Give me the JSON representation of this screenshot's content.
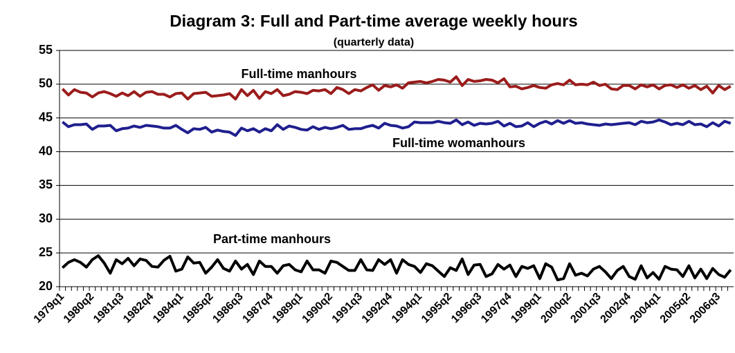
{
  "chart_data": {
    "type": "line",
    "title": "Diagram 3: Full and Part-time average weekly hours",
    "subtitle": "(quarterly data)",
    "categories": [
      "1979q1",
      null,
      null,
      null,
      null,
      "1980q2",
      null,
      null,
      null,
      null,
      "1981q3",
      null,
      null,
      null,
      null,
      "1982q4",
      null,
      null,
      null,
      null,
      "1984q1",
      null,
      null,
      null,
      null,
      "1985q2",
      null,
      null,
      null,
      null,
      "1986q3",
      null,
      null,
      null,
      null,
      "1987q4",
      null,
      null,
      null,
      null,
      "1989q1",
      null,
      null,
      null,
      null,
      "1990q2",
      null,
      null,
      null,
      null,
      "1991q3",
      null,
      null,
      null,
      null,
      "1992q4",
      null,
      null,
      null,
      null,
      "1994q1",
      null,
      null,
      null,
      null,
      "1995q2",
      null,
      null,
      null,
      null,
      "1996q3",
      null,
      null,
      null,
      null,
      "1997q4",
      null,
      null,
      null,
      null,
      "1999q1",
      null,
      null,
      null,
      null,
      "2000q2",
      null,
      null,
      null,
      null,
      "2001q3",
      null,
      null,
      null,
      null,
      "2002q4",
      null,
      null,
      null,
      null,
      "2004q1",
      null,
      null,
      null,
      null,
      "2005q2",
      null,
      null,
      null,
      null,
      "2006q3",
      null,
      null
    ],
    "series": [
      {
        "name": "Full-time manhours",
        "color": "#9b1c1c",
        "values": [
          49.3,
          48.4,
          49.2,
          48.8,
          48.7,
          48.1,
          48.7,
          48.9,
          48.6,
          48.2,
          48.7,
          48.3,
          48.9,
          48.2,
          48.8,
          48.9,
          48.5,
          48.5,
          48.1,
          48.6,
          48.7,
          47.8,
          48.6,
          48.7,
          48.8,
          48.2,
          48.3,
          48.4,
          48.6,
          47.8,
          49.2,
          48.3,
          49.1,
          47.9,
          48.9,
          48.6,
          49.2,
          48.3,
          48.5,
          48.9,
          48.8,
          48.6,
          49.1,
          49.0,
          49.2,
          48.6,
          49.5,
          49.2,
          48.6,
          49.2,
          49.0,
          49.5,
          49.9,
          49.1,
          49.8,
          49.6,
          49.9,
          49.4,
          50.2,
          50.3,
          50.4,
          50.2,
          50.4,
          50.7,
          50.6,
          50.3,
          51.1,
          49.8,
          50.7,
          50.4,
          50.5,
          50.7,
          50.6,
          50.2,
          50.8,
          49.6,
          49.7,
          49.3,
          49.5,
          49.8,
          49.5,
          49.4,
          49.9,
          50.1,
          49.9,
          50.6,
          49.9,
          50.0,
          49.9,
          50.3,
          49.8,
          50.0,
          49.3,
          49.2,
          49.8,
          49.8,
          49.3,
          49.9,
          49.6,
          49.9,
          49.3,
          49.8,
          49.9,
          49.5,
          49.9,
          49.4,
          49.8,
          49.2,
          49.7,
          48.7,
          49.8,
          49.2,
          49.7
        ]
      },
      {
        "name": "Full-time womanhours",
        "color": "#1f1f8f",
        "values": [
          44.4,
          43.7,
          44.0,
          44.0,
          44.1,
          43.3,
          43.8,
          43.8,
          43.9,
          43.1,
          43.4,
          43.5,
          43.8,
          43.6,
          43.9,
          43.8,
          43.7,
          43.5,
          43.5,
          43.9,
          43.3,
          42.8,
          43.4,
          43.3,
          43.6,
          42.9,
          43.2,
          43.0,
          42.9,
          42.4,
          43.5,
          43.1,
          43.4,
          42.9,
          43.4,
          43.1,
          44.0,
          43.3,
          43.8,
          43.6,
          43.3,
          43.2,
          43.7,
          43.3,
          43.6,
          43.4,
          43.6,
          43.9,
          43.3,
          43.4,
          43.4,
          43.7,
          43.9,
          43.5,
          44.2,
          43.9,
          43.8,
          43.5,
          43.7,
          44.4,
          44.3,
          44.3,
          44.3,
          44.5,
          44.3,
          44.2,
          44.7,
          44.0,
          44.4,
          43.9,
          44.2,
          44.1,
          44.2,
          44.5,
          43.8,
          44.2,
          43.7,
          43.8,
          44.3,
          43.7,
          44.2,
          44.5,
          44.1,
          44.6,
          44.2,
          44.6,
          44.2,
          44.3,
          44.1,
          44.0,
          43.9,
          44.1,
          44.0,
          44.1,
          44.2,
          44.3,
          44.0,
          44.5,
          44.3,
          44.4,
          44.7,
          44.4,
          44.0,
          44.2,
          44.0,
          44.5,
          44.0,
          44.1,
          43.7,
          44.3,
          43.8,
          44.5,
          44.2
        ]
      },
      {
        "name": "Part-time manhours",
        "color": "#000000",
        "values": [
          22.8,
          23.6,
          24.0,
          23.6,
          22.9,
          24.0,
          24.6,
          23.5,
          22.0,
          24.0,
          23.4,
          24.2,
          23.1,
          24.1,
          23.9,
          23.0,
          22.9,
          23.9,
          24.5,
          22.3,
          22.6,
          24.4,
          23.5,
          23.6,
          22.0,
          22.9,
          24.0,
          22.7,
          22.3,
          23.8,
          22.6,
          23.3,
          21.8,
          23.8,
          23.0,
          23.0,
          22.0,
          23.1,
          23.3,
          22.5,
          22.2,
          23.8,
          22.5,
          22.5,
          22.0,
          23.8,
          23.6,
          23.0,
          22.4,
          22.4,
          24.0,
          22.5,
          22.4,
          24.0,
          23.3,
          24.0,
          22.0,
          24.0,
          23.3,
          23.0,
          22.1,
          23.4,
          23.1,
          22.3,
          21.5,
          22.8,
          22.4,
          24.1,
          21.8,
          23.2,
          23.3,
          21.5,
          21.9,
          23.3,
          22.6,
          23.2,
          21.5,
          23.0,
          22.7,
          23.1,
          21.2,
          23.4,
          22.9,
          21.0,
          21.2,
          23.4,
          21.7,
          22.0,
          21.6,
          22.6,
          23.0,
          22.2,
          21.2,
          22.4,
          23.0,
          21.5,
          21.1,
          23.1,
          21.3,
          22.1,
          21.1,
          23.0,
          22.6,
          22.5,
          21.5,
          23.1,
          21.3,
          22.6,
          21.2,
          22.7,
          21.8,
          21.4,
          22.5
        ]
      }
    ],
    "ylim": [
      20,
      55
    ],
    "yticks": [
      20,
      25,
      30,
      35,
      40,
      45,
      50,
      55
    ],
    "grid": true
  }
}
